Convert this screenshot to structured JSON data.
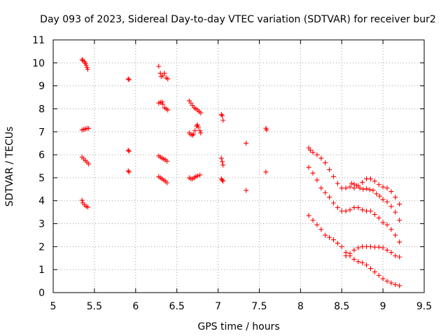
{
  "chart_data": {
    "type": "scatter",
    "title": "Day 093 of 2023, Sidereal Day-to-day VTEC variation (SDTVAR) for receiver bur2",
    "xlabel": "GPS time / hours",
    "ylabel": "SDTVAR / TECUs",
    "xlim": [
      5,
      9.5
    ],
    "ylim": [
      0,
      11
    ],
    "xticks": [
      "5",
      "5.5",
      "6",
      "6.5",
      "7",
      "7.5",
      "8",
      "8.5",
      "9",
      "9.5"
    ],
    "yticks": [
      "0",
      "1",
      "2",
      "3",
      "4",
      "5",
      "6",
      "7",
      "8",
      "9",
      "10",
      "11"
    ],
    "grid": true,
    "marker": "+",
    "series": [
      {
        "name": "SDTVAR",
        "color": "#ff0000",
        "points": [
          [
            5.35,
            10.15
          ],
          [
            5.36,
            10.1
          ],
          [
            5.38,
            10.05
          ],
          [
            5.39,
            9.98
          ],
          [
            5.4,
            9.9
          ],
          [
            5.41,
            9.8
          ],
          [
            5.42,
            9.72
          ],
          [
            5.35,
            7.08
          ],
          [
            5.37,
            7.1
          ],
          [
            5.39,
            7.12
          ],
          [
            5.41,
            7.15
          ],
          [
            5.43,
            7.15
          ],
          [
            5.35,
            5.9
          ],
          [
            5.37,
            5.82
          ],
          [
            5.39,
            5.75
          ],
          [
            5.41,
            5.68
          ],
          [
            5.43,
            5.6
          ],
          [
            5.35,
            4.02
          ],
          [
            5.36,
            3.9
          ],
          [
            5.38,
            3.82
          ],
          [
            5.4,
            3.75
          ],
          [
            5.42,
            3.72
          ],
          [
            5.91,
            9.3
          ],
          [
            5.92,
            9.27
          ],
          [
            5.91,
            6.2
          ],
          [
            5.92,
            6.15
          ],
          [
            5.91,
            5.3
          ],
          [
            5.92,
            5.25
          ],
          [
            6.28,
            9.85
          ],
          [
            6.3,
            9.55
          ],
          [
            6.31,
            9.4
          ],
          [
            6.33,
            9.45
          ],
          [
            6.35,
            9.55
          ],
          [
            6.37,
            9.35
          ],
          [
            6.39,
            9.3
          ],
          [
            6.28,
            8.25
          ],
          [
            6.3,
            8.28
          ],
          [
            6.32,
            8.3
          ],
          [
            6.33,
            8.2
          ],
          [
            6.35,
            8.05
          ],
          [
            6.37,
            8.0
          ],
          [
            6.39,
            7.95
          ],
          [
            6.28,
            5.95
          ],
          [
            6.3,
            5.9
          ],
          [
            6.32,
            5.85
          ],
          [
            6.34,
            5.82
          ],
          [
            6.36,
            5.78
          ],
          [
            6.38,
            5.72
          ],
          [
            6.28,
            5.05
          ],
          [
            6.3,
            5.0
          ],
          [
            6.32,
            4.95
          ],
          [
            6.34,
            4.9
          ],
          [
            6.36,
            4.85
          ],
          [
            6.38,
            4.78
          ],
          [
            6.65,
            8.35
          ],
          [
            6.67,
            8.25
          ],
          [
            6.69,
            8.15
          ],
          [
            6.71,
            8.05
          ],
          [
            6.73,
            8.0
          ],
          [
            6.75,
            7.95
          ],
          [
            6.77,
            7.88
          ],
          [
            6.79,
            7.82
          ],
          [
            6.65,
            6.95
          ],
          [
            6.67,
            6.88
          ],
          [
            6.69,
            6.85
          ],
          [
            6.7,
            6.9
          ],
          [
            6.72,
            7.05
          ],
          [
            6.74,
            7.25
          ],
          [
            6.75,
            7.3
          ],
          [
            6.76,
            7.2
          ],
          [
            6.78,
            7.05
          ],
          [
            6.79,
            6.95
          ],
          [
            6.65,
            5.0
          ],
          [
            6.67,
            4.95
          ],
          [
            6.69,
            4.95
          ],
          [
            6.71,
            5.0
          ],
          [
            6.73,
            5.05
          ],
          [
            6.75,
            5.08
          ],
          [
            6.78,
            5.12
          ],
          [
            7.04,
            7.75
          ],
          [
            7.05,
            7.7
          ],
          [
            7.06,
            7.5
          ],
          [
            7.04,
            5.85
          ],
          [
            7.05,
            5.7
          ],
          [
            7.06,
            5.55
          ],
          [
            7.04,
            4.95
          ],
          [
            7.05,
            4.9
          ],
          [
            7.06,
            4.85
          ],
          [
            7.34,
            6.5
          ],
          [
            7.34,
            4.45
          ],
          [
            7.58,
            7.15
          ],
          [
            7.59,
            7.08
          ],
          [
            7.58,
            5.25
          ],
          [
            8.1,
            6.3
          ],
          [
            8.12,
            6.2
          ],
          [
            8.15,
            6.1
          ],
          [
            8.2,
            6.0
          ],
          [
            8.25,
            5.85
          ],
          [
            8.3,
            5.65
          ],
          [
            8.35,
            5.35
          ],
          [
            8.4,
            5.05
          ],
          [
            8.45,
            4.75
          ],
          [
            8.5,
            4.55
          ],
          [
            8.55,
            4.55
          ],
          [
            8.6,
            4.6
          ],
          [
            8.65,
            4.55
          ],
          [
            8.7,
            4.65
          ],
          [
            8.75,
            4.8
          ],
          [
            8.8,
            4.95
          ],
          [
            8.85,
            4.95
          ],
          [
            8.9,
            4.85
          ],
          [
            8.95,
            4.7
          ],
          [
            9.0,
            4.6
          ],
          [
            9.05,
            4.55
          ],
          [
            9.1,
            4.4
          ],
          [
            9.15,
            4.15
          ],
          [
            9.2,
            3.85
          ],
          [
            8.1,
            5.45
          ],
          [
            8.15,
            5.2
          ],
          [
            8.2,
            4.9
          ],
          [
            8.25,
            4.55
          ],
          [
            8.3,
            4.35
          ],
          [
            8.35,
            4.15
          ],
          [
            8.4,
            3.9
          ],
          [
            8.45,
            3.7
          ],
          [
            8.5,
            3.55
          ],
          [
            8.55,
            3.55
          ],
          [
            8.6,
            3.6
          ],
          [
            8.65,
            3.7
          ],
          [
            8.7,
            3.7
          ],
          [
            8.75,
            3.6
          ],
          [
            8.8,
            3.55
          ],
          [
            8.85,
            3.55
          ],
          [
            8.9,
            3.4
          ],
          [
            8.95,
            3.25
          ],
          [
            9.0,
            3.05
          ],
          [
            9.05,
            2.95
          ],
          [
            9.1,
            2.75
          ],
          [
            9.15,
            2.5
          ],
          [
            9.2,
            2.2
          ],
          [
            8.62,
            4.75
          ],
          [
            8.65,
            4.72
          ],
          [
            8.68,
            4.65
          ],
          [
            8.72,
            4.55
          ],
          [
            8.76,
            4.5
          ],
          [
            8.8,
            4.52
          ],
          [
            8.84,
            4.48
          ],
          [
            8.88,
            4.45
          ],
          [
            8.92,
            4.3
          ],
          [
            8.96,
            4.2
          ],
          [
            9.0,
            4.05
          ],
          [
            9.05,
            3.95
          ],
          [
            9.1,
            3.75
          ],
          [
            9.15,
            3.5
          ],
          [
            9.2,
            3.15
          ],
          [
            8.1,
            3.35
          ],
          [
            8.15,
            3.15
          ],
          [
            8.2,
            2.95
          ],
          [
            8.25,
            2.75
          ],
          [
            8.3,
            2.5
          ],
          [
            8.35,
            2.4
          ],
          [
            8.4,
            2.3
          ],
          [
            8.45,
            2.15
          ],
          [
            8.5,
            2.0
          ],
          [
            8.55,
            1.75
          ],
          [
            8.6,
            1.6
          ],
          [
            8.65,
            1.45
          ],
          [
            8.7,
            1.35
          ],
          [
            8.75,
            1.3
          ],
          [
            8.8,
            1.2
          ],
          [
            8.85,
            1.05
          ],
          [
            8.9,
            0.9
          ],
          [
            8.95,
            0.75
          ],
          [
            9.0,
            0.6
          ],
          [
            9.05,
            0.5
          ],
          [
            9.1,
            0.42
          ],
          [
            9.15,
            0.35
          ],
          [
            9.2,
            0.3
          ],
          [
            8.55,
            1.6
          ],
          [
            8.6,
            1.7
          ],
          [
            8.65,
            1.85
          ],
          [
            8.7,
            1.95
          ],
          [
            8.75,
            2.0
          ],
          [
            8.8,
            2.0
          ],
          [
            8.85,
            2.0
          ],
          [
            8.9,
            1.98
          ],
          [
            8.95,
            1.98
          ],
          [
            9.0,
            1.95
          ],
          [
            9.05,
            1.85
          ],
          [
            9.1,
            1.75
          ],
          [
            9.15,
            1.6
          ],
          [
            9.2,
            1.55
          ]
        ]
      }
    ]
  }
}
